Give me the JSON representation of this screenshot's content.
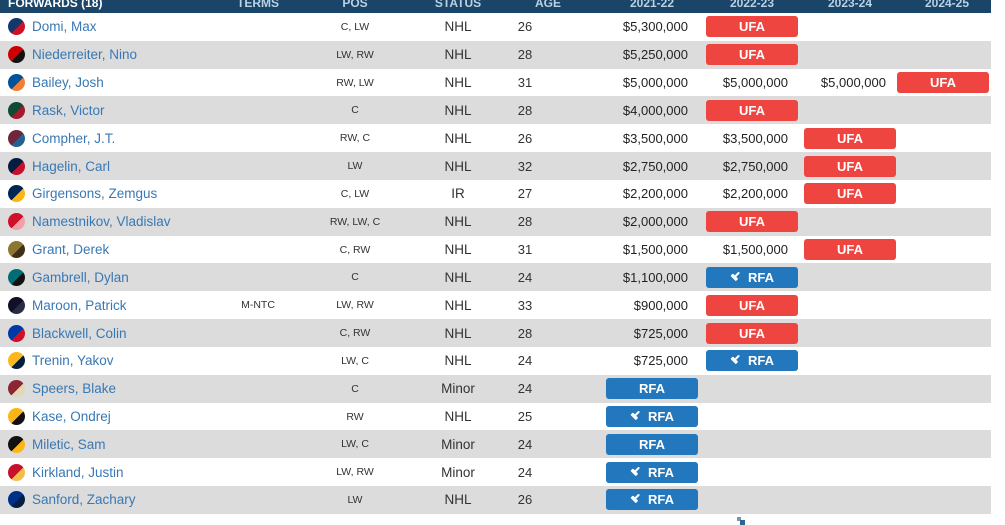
{
  "header": {
    "section": "FORWARDS (18)",
    "terms": "TERMS",
    "pos": "POS",
    "status": "STATUS",
    "age": "AGE",
    "season1": "2021-22",
    "season2": "2022-23",
    "season3": "2023-24",
    "season4": "2024-25"
  },
  "badges": {
    "ufa": "UFA",
    "rfa": "RFA"
  },
  "colors": {
    "header_bg": "#1a4569",
    "header_fg": "#b9d2e4",
    "stripe": "#dcdcdc",
    "ufa": "#ee4540",
    "rfa": "#2277bd",
    "link": "#3878b4"
  },
  "rows": [
    {
      "team": "columbus-blue-jackets",
      "icon_colors": [
        "#13396b",
        "#ce1126"
      ],
      "name": "Domi, Max",
      "terms": "",
      "pos": "C, LW",
      "status": "NHL",
      "age": "26",
      "seasons": [
        {
          "type": "salary",
          "value": "$5,300,000"
        },
        {
          "type": "ufa"
        },
        {
          "type": "empty"
        },
        {
          "type": "empty"
        }
      ]
    },
    {
      "team": "carolina-hurricanes",
      "icon_colors": [
        "#cc0000",
        "#111111"
      ],
      "name": "Niederreiter, Nino",
      "terms": "",
      "pos": "LW, RW",
      "status": "NHL",
      "age": "28",
      "seasons": [
        {
          "type": "salary",
          "value": "$5,250,000"
        },
        {
          "type": "ufa"
        },
        {
          "type": "empty"
        },
        {
          "type": "empty"
        }
      ]
    },
    {
      "team": "new-york-islanders",
      "icon_colors": [
        "#00539b",
        "#f57d31"
      ],
      "name": "Bailey, Josh",
      "terms": "",
      "pos": "RW, LW",
      "status": "NHL",
      "age": "31",
      "seasons": [
        {
          "type": "salary",
          "value": "$5,000,000"
        },
        {
          "type": "salary",
          "value": "$5,000,000"
        },
        {
          "type": "salary",
          "value": "$5,000,000"
        },
        {
          "type": "ufa"
        }
      ]
    },
    {
      "team": "minnesota-wild",
      "icon_colors": [
        "#0e4a34",
        "#a6192e"
      ],
      "name": "Rask, Victor",
      "terms": "",
      "pos": "C",
      "status": "NHL",
      "age": "28",
      "seasons": [
        {
          "type": "salary",
          "value": "$4,000,000"
        },
        {
          "type": "ufa"
        },
        {
          "type": "empty"
        },
        {
          "type": "empty"
        }
      ]
    },
    {
      "team": "colorado-avalanche",
      "icon_colors": [
        "#6f263d",
        "#236192"
      ],
      "name": "Compher, J.T.",
      "terms": "",
      "pos": "RW, C",
      "status": "NHL",
      "age": "26",
      "seasons": [
        {
          "type": "salary",
          "value": "$3,500,000"
        },
        {
          "type": "salary",
          "value": "$3,500,000"
        },
        {
          "type": "ufa"
        },
        {
          "type": "empty"
        }
      ]
    },
    {
      "team": "washington-capitals",
      "icon_colors": [
        "#041e42",
        "#c8102e"
      ],
      "name": "Hagelin, Carl",
      "terms": "",
      "pos": "LW",
      "status": "NHL",
      "age": "32",
      "seasons": [
        {
          "type": "salary",
          "value": "$2,750,000"
        },
        {
          "type": "salary",
          "value": "$2,750,000"
        },
        {
          "type": "ufa"
        },
        {
          "type": "empty"
        }
      ]
    },
    {
      "team": "buffalo-sabres",
      "icon_colors": [
        "#002654",
        "#fcb514"
      ],
      "name": "Girgensons, Zemgus",
      "terms": "",
      "pos": "C, LW",
      "status": "IR",
      "age": "27",
      "seasons": [
        {
          "type": "salary",
          "value": "$2,200,000"
        },
        {
          "type": "salary",
          "value": "$2,200,000"
        },
        {
          "type": "ufa"
        },
        {
          "type": "empty"
        }
      ]
    },
    {
      "team": "detroit-red-wings",
      "icon_colors": [
        "#ce1126",
        "#f0a0a8"
      ],
      "name": "Namestnikov, Vladislav",
      "terms": "",
      "pos": "RW, LW, C",
      "status": "NHL",
      "age": "28",
      "seasons": [
        {
          "type": "salary",
          "value": "$2,000,000"
        },
        {
          "type": "ufa"
        },
        {
          "type": "empty"
        },
        {
          "type": "empty"
        }
      ]
    },
    {
      "team": "anaheim-ducks",
      "icon_colors": [
        "#8c7732",
        "#3d2f18"
      ],
      "name": "Grant, Derek",
      "terms": "",
      "pos": "C, RW",
      "status": "NHL",
      "age": "31",
      "seasons": [
        {
          "type": "salary",
          "value": "$1,500,000"
        },
        {
          "type": "salary",
          "value": "$1,500,000"
        },
        {
          "type": "ufa"
        },
        {
          "type": "empty"
        }
      ]
    },
    {
      "team": "san-jose-sharks",
      "icon_colors": [
        "#006d75",
        "#111111"
      ],
      "name": "Gambrell, Dylan",
      "terms": "",
      "pos": "C",
      "status": "NHL",
      "age": "24",
      "seasons": [
        {
          "type": "salary",
          "value": "$1,100,000"
        },
        {
          "type": "rfa"
        },
        {
          "type": "empty"
        },
        {
          "type": "empty"
        }
      ]
    },
    {
      "team": "tampa-bay-lightning",
      "icon_colors": [
        "#101026",
        "#2b2b45"
      ],
      "name": "Maroon, Patrick",
      "terms": "M-NTC",
      "pos": "LW, RW",
      "status": "NHL",
      "age": "33",
      "seasons": [
        {
          "type": "salary",
          "value": "$900,000"
        },
        {
          "type": "ufa"
        },
        {
          "type": "empty"
        },
        {
          "type": "empty"
        }
      ]
    },
    {
      "team": "new-york-rangers",
      "icon_colors": [
        "#0038a8",
        "#ce1126"
      ],
      "name": "Blackwell, Colin",
      "terms": "",
      "pos": "C, RW",
      "status": "NHL",
      "age": "28",
      "seasons": [
        {
          "type": "salary",
          "value": "$725,000"
        },
        {
          "type": "ufa"
        },
        {
          "type": "empty"
        },
        {
          "type": "empty"
        }
      ]
    },
    {
      "team": "nashville-predators",
      "icon_colors": [
        "#ffb81c",
        "#041e42"
      ],
      "name": "Trenin, Yakov",
      "terms": "",
      "pos": "LW, C",
      "status": "NHL",
      "age": "24",
      "seasons": [
        {
          "type": "salary",
          "value": "$725,000"
        },
        {
          "type": "rfa"
        },
        {
          "type": "empty"
        },
        {
          "type": "empty"
        }
      ]
    },
    {
      "team": "arizona-coyotes",
      "icon_colors": [
        "#8c2633",
        "#e2d6b5"
      ],
      "name": "Speers, Blake",
      "terms": "",
      "pos": "C",
      "status": "Minor",
      "age": "24",
      "seasons": [
        {
          "type": "rfa_plain"
        },
        {
          "type": "empty"
        },
        {
          "type": "empty"
        },
        {
          "type": "empty"
        }
      ]
    },
    {
      "team": "boston-bruins",
      "icon_colors": [
        "#fcb514",
        "#111111"
      ],
      "name": "Kase, Ondrej",
      "terms": "",
      "pos": "RW",
      "status": "NHL",
      "age": "25",
      "seasons": [
        {
          "type": "rfa"
        },
        {
          "type": "empty"
        },
        {
          "type": "empty"
        },
        {
          "type": "empty"
        }
      ]
    },
    {
      "team": "pittsburgh-penguins",
      "icon_colors": [
        "#111111",
        "#fcb514"
      ],
      "name": "Miletic, Sam",
      "terms": "",
      "pos": "LW, C",
      "status": "Minor",
      "age": "24",
      "seasons": [
        {
          "type": "rfa_plain"
        },
        {
          "type": "empty"
        },
        {
          "type": "empty"
        },
        {
          "type": "empty"
        }
      ]
    },
    {
      "team": "calgary-flames",
      "icon_colors": [
        "#c8102e",
        "#f1be48"
      ],
      "name": "Kirkland, Justin",
      "terms": "",
      "pos": "LW, RW",
      "status": "Minor",
      "age": "24",
      "seasons": [
        {
          "type": "rfa"
        },
        {
          "type": "empty"
        },
        {
          "type": "empty"
        },
        {
          "type": "empty"
        }
      ]
    },
    {
      "team": "st-louis-blues",
      "icon_colors": [
        "#002f87",
        "#041e42"
      ],
      "name": "Sanford, Zachary",
      "terms": "",
      "pos": "LW",
      "status": "NHL",
      "age": "26",
      "seasons": [
        {
          "type": "rfa"
        },
        {
          "type": "empty"
        },
        {
          "type": "empty"
        },
        {
          "type": "empty"
        }
      ]
    }
  ]
}
